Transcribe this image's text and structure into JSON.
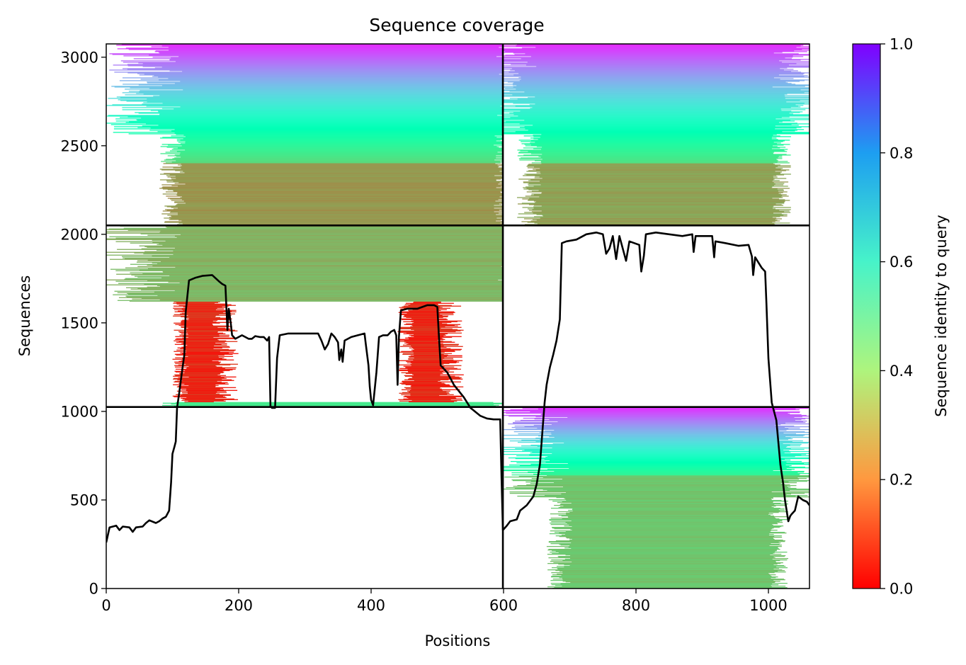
{
  "chart_data": {
    "type": "heatmap",
    "title": "Sequence coverage",
    "xlabel": "Positions",
    "ylabel": "Sequences",
    "xlim": [
      0,
      1062
    ],
    "ylim": [
      0,
      3075
    ],
    "x_ticks": [
      "0",
      "200",
      "400",
      "600",
      "800",
      "1000"
    ],
    "y_ticks": [
      "0",
      "500",
      "1000",
      "1500",
      "2000",
      "2500",
      "3000"
    ],
    "colorbar": {
      "label": "Sequence identity to query",
      "range": [
        0,
        1
      ],
      "ticks": [
        "0.0",
        "0.2",
        "0.4",
        "0.6",
        "0.8",
        "1.0"
      ],
      "colormap": "rainbow"
    },
    "block_dividers": {
      "x": [
        599
      ],
      "y": [
        1025,
        2050
      ]
    },
    "blocks": [
      {
        "x": [
          0,
          599
        ],
        "y": [
          2050,
          3075
        ],
        "cov_x": [
          100,
          600
        ],
        "bottom_identity": 0.2,
        "top_identity": 0.95,
        "dense_identity": 0.2,
        "dense_y": [
          2050,
          2400
        ]
      },
      {
        "x": [
          599,
          1062
        ],
        "y": [
          2050,
          3075
        ],
        "cov_x": [
          640,
          1020
        ],
        "bottom_identity": 0.2,
        "top_identity": 0.95,
        "dense_identity": 0.22,
        "dense_y": [
          2050,
          2400
        ]
      },
      {
        "x": [
          0,
          599
        ],
        "y": [
          1025,
          2050
        ],
        "cov_x": [
          100,
          599
        ],
        "bottom_identity": 0.0,
        "top_identity": 0.95,
        "dense_identity": 0.25,
        "dense_y": [
          1620,
          2050
        ],
        "red_x": [
          [
            100,
            200
          ],
          [
            440,
            540
          ]
        ],
        "red_y": [
          1050,
          1620
        ]
      },
      {
        "x": [
          599,
          1062
        ],
        "y": [
          0,
          1025
        ],
        "cov_x": [
          685,
          1015
        ],
        "bottom_identity": 0.25,
        "top_identity": 0.95,
        "dense_identity": 0.28,
        "dense_y": [
          0,
          640
        ]
      }
    ],
    "coverage_line": {
      "name": "coverage",
      "points": [
        [
          0,
          260
        ],
        [
          5,
          345
        ],
        [
          15,
          355
        ],
        [
          20,
          330
        ],
        [
          25,
          350
        ],
        [
          35,
          345
        ],
        [
          40,
          320
        ],
        [
          45,
          345
        ],
        [
          55,
          350
        ],
        [
          60,
          370
        ],
        [
          65,
          385
        ],
        [
          75,
          370
        ],
        [
          80,
          380
        ],
        [
          85,
          395
        ],
        [
          90,
          405
        ],
        [
          95,
          440
        ],
        [
          98,
          600
        ],
        [
          100,
          760
        ],
        [
          103,
          800
        ],
        [
          105,
          830
        ],
        [
          107,
          1020
        ],
        [
          110,
          1100
        ],
        [
          115,
          1240
        ],
        [
          118,
          1320
        ],
        [
          120,
          1560
        ],
        [
          125,
          1740
        ],
        [
          135,
          1755
        ],
        [
          145,
          1765
        ],
        [
          160,
          1770
        ],
        [
          170,
          1735
        ],
        [
          175,
          1720
        ],
        [
          180,
          1710
        ],
        [
          183,
          1460
        ],
        [
          185,
          1580
        ],
        [
          188,
          1500
        ],
        [
          190,
          1430
        ],
        [
          195,
          1410
        ],
        [
          205,
          1430
        ],
        [
          210,
          1420
        ],
        [
          215,
          1410
        ],
        [
          220,
          1410
        ],
        [
          225,
          1425
        ],
        [
          232,
          1420
        ],
        [
          238,
          1420
        ],
        [
          243,
          1400
        ],
        [
          246,
          1420
        ],
        [
          248,
          1030
        ],
        [
          250,
          1020
        ],
        [
          255,
          1020
        ],
        [
          258,
          1300
        ],
        [
          262,
          1430
        ],
        [
          275,
          1440
        ],
        [
          290,
          1440
        ],
        [
          310,
          1440
        ],
        [
          320,
          1440
        ],
        [
          325,
          1400
        ],
        [
          330,
          1350
        ],
        [
          335,
          1380
        ],
        [
          340,
          1440
        ],
        [
          345,
          1420
        ],
        [
          350,
          1390
        ],
        [
          352,
          1290
        ],
        [
          355,
          1350
        ],
        [
          357,
          1280
        ],
        [
          360,
          1400
        ],
        [
          370,
          1420
        ],
        [
          380,
          1430
        ],
        [
          390,
          1440
        ],
        [
          392,
          1380
        ],
        [
          396,
          1260
        ],
        [
          398,
          1140
        ],
        [
          400,
          1065
        ],
        [
          403,
          1035
        ],
        [
          408,
          1220
        ],
        [
          412,
          1420
        ],
        [
          418,
          1430
        ],
        [
          425,
          1430
        ],
        [
          430,
          1450
        ],
        [
          435,
          1460
        ],
        [
          438,
          1430
        ],
        [
          440,
          1150
        ],
        [
          442,
          1420
        ],
        [
          445,
          1570
        ],
        [
          455,
          1580
        ],
        [
          470,
          1580
        ],
        [
          485,
          1600
        ],
        [
          495,
          1600
        ],
        [
          500,
          1590
        ],
        [
          502,
          1450
        ],
        [
          505,
          1260
        ],
        [
          515,
          1220
        ],
        [
          525,
          1150
        ],
        [
          540,
          1080
        ],
        [
          550,
          1020
        ],
        [
          565,
          975
        ],
        [
          575,
          960
        ],
        [
          585,
          955
        ],
        [
          595,
          955
        ],
        [
          597,
          620
        ],
        [
          599,
          330
        ],
        [
          605,
          355
        ],
        [
          610,
          380
        ],
        [
          620,
          390
        ],
        [
          625,
          440
        ],
        [
          635,
          470
        ],
        [
          645,
          520
        ],
        [
          650,
          590
        ],
        [
          655,
          700
        ],
        [
          658,
          850
        ],
        [
          662,
          1050
        ],
        [
          665,
          1150
        ],
        [
          670,
          1250
        ],
        [
          675,
          1320
        ],
        [
          680,
          1400
        ],
        [
          685,
          1520
        ],
        [
          688,
          1950
        ],
        [
          695,
          1960
        ],
        [
          710,
          1970
        ],
        [
          725,
          2000
        ],
        [
          740,
          2010
        ],
        [
          750,
          2000
        ],
        [
          755,
          1890
        ],
        [
          760,
          1920
        ],
        [
          765,
          1990
        ],
        [
          770,
          1860
        ],
        [
          775,
          1990
        ],
        [
          785,
          1850
        ],
        [
          790,
          1960
        ],
        [
          805,
          1940
        ],
        [
          808,
          1790
        ],
        [
          812,
          1880
        ],
        [
          815,
          2000
        ],
        [
          830,
          2010
        ],
        [
          850,
          2000
        ],
        [
          870,
          1990
        ],
        [
          885,
          2000
        ],
        [
          887,
          1900
        ],
        [
          890,
          1990
        ],
        [
          915,
          1990
        ],
        [
          918,
          1870
        ],
        [
          920,
          1960
        ],
        [
          935,
          1950
        ],
        [
          955,
          1935
        ],
        [
          970,
          1940
        ],
        [
          975,
          1875
        ],
        [
          977,
          1770
        ],
        [
          980,
          1870
        ],
        [
          990,
          1810
        ],
        [
          995,
          1790
        ],
        [
          997,
          1610
        ],
        [
          1000,
          1300
        ],
        [
          1005,
          1050
        ],
        [
          1012,
          950
        ],
        [
          1018,
          700
        ],
        [
          1022,
          600
        ],
        [
          1025,
          500
        ],
        [
          1030,
          380
        ],
        [
          1033,
          410
        ],
        [
          1035,
          420
        ],
        [
          1040,
          440
        ],
        [
          1045,
          520
        ],
        [
          1052,
          500
        ],
        [
          1058,
          490
        ],
        [
          1062,
          470
        ]
      ]
    }
  }
}
